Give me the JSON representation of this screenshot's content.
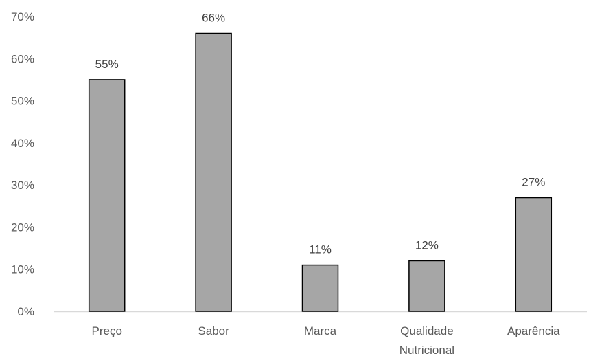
{
  "chart_data": {
    "type": "bar",
    "categories": [
      "Preço",
      "Sabor",
      "Marca",
      "Qualidade Nutricional",
      "Aparência"
    ],
    "category_lines": [
      [
        "Preço"
      ],
      [
        "Sabor"
      ],
      [
        "Marca"
      ],
      [
        "Qualidade",
        "Nutricional"
      ],
      [
        "Aparência"
      ]
    ],
    "values": [
      55,
      66,
      11,
      12,
      27
    ],
    "data_labels": [
      "55%",
      "66%",
      "11%",
      "12%",
      "27%"
    ],
    "y_ticks": [
      0,
      10,
      20,
      30,
      40,
      50,
      60,
      70
    ],
    "y_tick_labels": [
      "0%",
      "10%",
      "20%",
      "30%",
      "40%",
      "50%",
      "60%",
      "70%"
    ],
    "ylim": [
      0,
      70
    ],
    "title": "",
    "xlabel": "",
    "ylabel": "",
    "grid": false,
    "legend": "none",
    "colors": {
      "bar_fill": "#a6a6a6",
      "bar_stroke": "#000000",
      "axis": "#d9d9d9"
    }
  }
}
